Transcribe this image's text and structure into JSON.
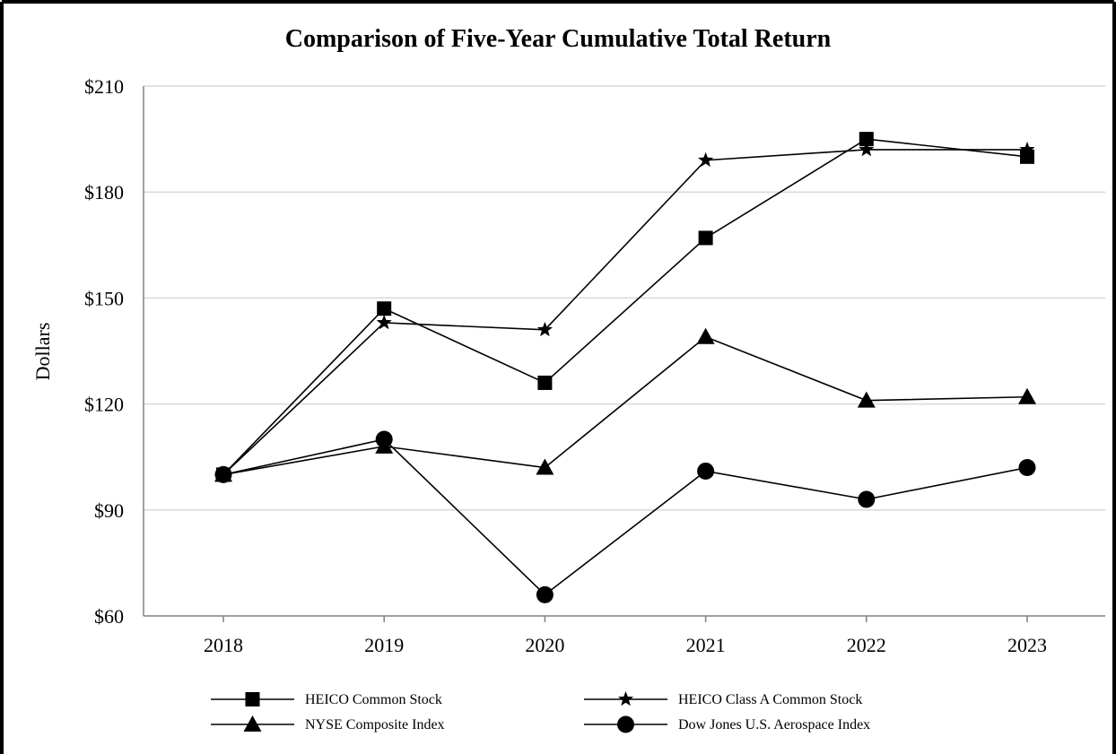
{
  "chart_data": {
    "type": "line",
    "title": "Comparison of Five-Year Cumulative Total Return",
    "xlabel": "",
    "ylabel": "Dollars",
    "x": [
      "2018",
      "2019",
      "2020",
      "2021",
      "2022",
      "2023"
    ],
    "ylim": [
      60,
      210
    ],
    "yticks": [
      60,
      90,
      120,
      150,
      180,
      210
    ],
    "ytick_labels": [
      "$60",
      "$90",
      "$120",
      "$150",
      "$180",
      "$210"
    ],
    "grid": true,
    "legend_position": "bottom",
    "series": [
      {
        "name": "HEICO Common Stock",
        "marker": "square",
        "values": [
          100,
          147,
          126,
          167,
          195,
          190
        ]
      },
      {
        "name": "HEICO Class A Common Stock",
        "marker": "star",
        "values": [
          100,
          143,
          141,
          189,
          192,
          192
        ]
      },
      {
        "name": "NYSE Composite Index",
        "marker": "triangle",
        "values": [
          100,
          108,
          102,
          139,
          121,
          122
        ]
      },
      {
        "name": "Dow Jones U.S. Aerospace Index",
        "marker": "circle",
        "values": [
          100,
          110,
          66,
          101,
          93,
          102
        ]
      }
    ]
  }
}
